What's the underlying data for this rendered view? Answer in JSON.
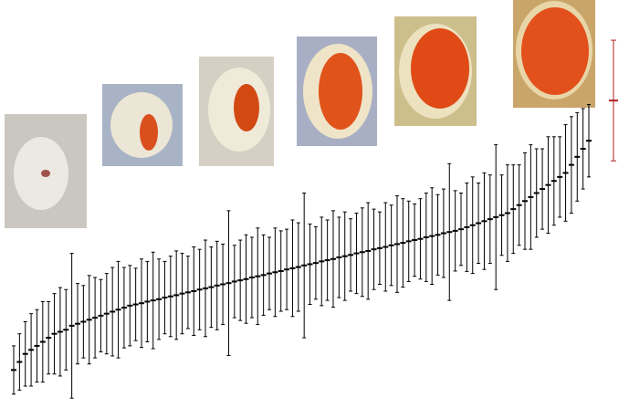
{
  "chart_data": {
    "type": "errorbar",
    "ylim": [
      0,
      101
    ],
    "series": [
      {
        "color": "#000000",
        "values": [
          9,
          11,
          13,
          14,
          15,
          16,
          17,
          18,
          18.5,
          19,
          20,
          20.5,
          21,
          21.5,
          22,
          22.5,
          23,
          23.5,
          24,
          24.5,
          25,
          25.3,
          25.6,
          26,
          26.3,
          26.6,
          27,
          27.3,
          27.6,
          28,
          28.3,
          28.6,
          29,
          29.3,
          29.6,
          30,
          30.3,
          30.6,
          31,
          31.3,
          31.6,
          32,
          32.3,
          32.6,
          33,
          33.3,
          33.6,
          34,
          34.3,
          34.6,
          35,
          35.3,
          35.6,
          36,
          36.3,
          36.6,
          37,
          37.3,
          37.6,
          38,
          38.3,
          38.6,
          39,
          39.3,
          39.6,
          40,
          40.3,
          40.6,
          41,
          41.3,
          41.6,
          42,
          42.3,
          42.6,
          43,
          43.3,
          43.6,
          44,
          44.5,
          45,
          45.5,
          46,
          46.5,
          47,
          47.5,
          48,
          49,
          50,
          51,
          52,
          53,
          54,
          55,
          56,
          57,
          58,
          60,
          62,
          64,
          66
        ],
        "errors": [
          6,
          7,
          8,
          9,
          9,
          10,
          9,
          10,
          11,
          10,
          18,
          10,
          9,
          11,
          10,
          9,
          10,
          11,
          12,
          10,
          10,
          9,
          11,
          10,
          12,
          10,
          9,
          10,
          11,
          10,
          9,
          11,
          10,
          12,
          10,
          11,
          10,
          18,
          9,
          10,
          11,
          10,
          12,
          10,
          9,
          11,
          10,
          10,
          12,
          11,
          18,
          10,
          9,
          11,
          10,
          12,
          10,
          11,
          9,
          10,
          11,
          12,
          10,
          9,
          11,
          10,
          12,
          11,
          10,
          9,
          10,
          11,
          12,
          10,
          11,
          17,
          10,
          9,
          11,
          12,
          10,
          12,
          11,
          18,
          10,
          12,
          11,
          10,
          12,
          13,
          11,
          10,
          12,
          11,
          10,
          12,
          12,
          11,
          10,
          9
        ]
      },
      {
        "color": "#b22222",
        "values": [
          76
        ],
        "errors": [
          15
        ]
      }
    ]
  }
}
